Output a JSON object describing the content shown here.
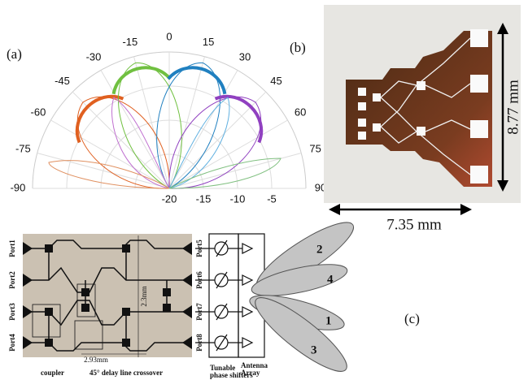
{
  "panel_a": {
    "label": "(a)",
    "angle_ticks": [
      -90,
      -75,
      -60,
      -45,
      -30,
      -15,
      0,
      15,
      30,
      45,
      60,
      75,
      90
    ],
    "radial_ticks": [
      -20,
      -15,
      -10,
      -5
    ],
    "rlim": [
      -20,
      0
    ]
  },
  "panel_b": {
    "label": "(b)",
    "height": "8.77 mm",
    "width": "7.35 mm"
  },
  "panel_c": {
    "label": "(c)",
    "ports_left": [
      "Port1",
      "Port2",
      "Port3",
      "Port4"
    ],
    "ports_right": [
      "Port5",
      "Port6",
      "Port7",
      "Port8"
    ],
    "dim_height": "2.3mm",
    "dim_width": "2.93mm",
    "coupler": "coupler",
    "crossover": "45° delay line crossover",
    "shifters": [
      "Tunable",
      "phase shifters"
    ],
    "antenna": [
      "Antenna",
      "Array"
    ],
    "beams": [
      "2",
      "4",
      "1",
      "3"
    ]
  }
}
